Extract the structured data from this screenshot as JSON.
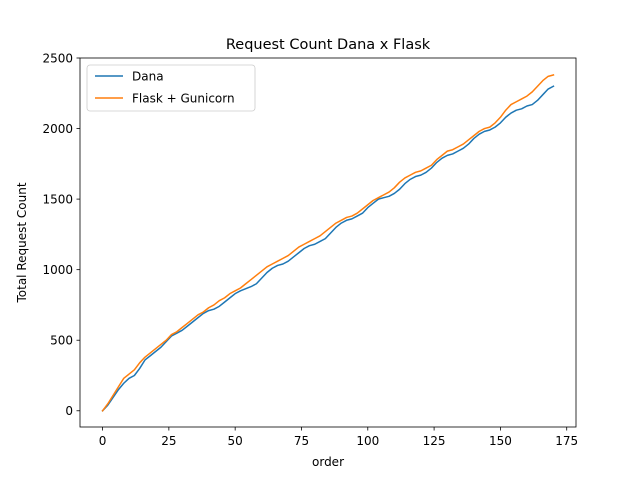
{
  "chart_data": {
    "type": "line",
    "title": "Request Count Dana x Flask",
    "xlabel": "order",
    "ylabel": "Total Request Count",
    "xlim": [
      -8.5,
      178.5
    ],
    "ylim": [
      -115,
      2500
    ],
    "xticks": [
      0,
      25,
      50,
      75,
      100,
      125,
      150,
      175
    ],
    "yticks": [
      0,
      500,
      1000,
      1500,
      2000,
      2500
    ],
    "grid": false,
    "legend_position": "upper-left",
    "series": [
      {
        "name": "Dana",
        "color": "#1f77b4",
        "points": [
          [
            0,
            0
          ],
          [
            2,
            40
          ],
          [
            4,
            95
          ],
          [
            6,
            150
          ],
          [
            8,
            195
          ],
          [
            10,
            230
          ],
          [
            12,
            250
          ],
          [
            14,
            300
          ],
          [
            16,
            360
          ],
          [
            18,
            390
          ],
          [
            20,
            420
          ],
          [
            22,
            450
          ],
          [
            24,
            490
          ],
          [
            26,
            530
          ],
          [
            28,
            550
          ],
          [
            30,
            570
          ],
          [
            32,
            600
          ],
          [
            34,
            630
          ],
          [
            36,
            660
          ],
          [
            38,
            690
          ],
          [
            40,
            710
          ],
          [
            42,
            720
          ],
          [
            44,
            740
          ],
          [
            46,
            770
          ],
          [
            48,
            800
          ],
          [
            50,
            830
          ],
          [
            52,
            850
          ],
          [
            54,
            865
          ],
          [
            56,
            880
          ],
          [
            58,
            900
          ],
          [
            60,
            940
          ],
          [
            62,
            980
          ],
          [
            64,
            1010
          ],
          [
            66,
            1030
          ],
          [
            68,
            1040
          ],
          [
            70,
            1060
          ],
          [
            72,
            1090
          ],
          [
            74,
            1120
          ],
          [
            76,
            1150
          ],
          [
            78,
            1170
          ],
          [
            80,
            1180
          ],
          [
            82,
            1200
          ],
          [
            84,
            1220
          ],
          [
            86,
            1260
          ],
          [
            88,
            1300
          ],
          [
            90,
            1330
          ],
          [
            92,
            1350
          ],
          [
            94,
            1360
          ],
          [
            96,
            1380
          ],
          [
            98,
            1400
          ],
          [
            100,
            1440
          ],
          [
            102,
            1470
          ],
          [
            104,
            1500
          ],
          [
            106,
            1510
          ],
          [
            108,
            1520
          ],
          [
            110,
            1540
          ],
          [
            112,
            1570
          ],
          [
            114,
            1610
          ],
          [
            116,
            1640
          ],
          [
            118,
            1660
          ],
          [
            120,
            1670
          ],
          [
            122,
            1690
          ],
          [
            124,
            1720
          ],
          [
            126,
            1760
          ],
          [
            128,
            1790
          ],
          [
            130,
            1810
          ],
          [
            132,
            1820
          ],
          [
            134,
            1840
          ],
          [
            136,
            1860
          ],
          [
            138,
            1890
          ],
          [
            140,
            1930
          ],
          [
            142,
            1960
          ],
          [
            144,
            1980
          ],
          [
            146,
            1990
          ],
          [
            148,
            2010
          ],
          [
            150,
            2040
          ],
          [
            152,
            2080
          ],
          [
            154,
            2110
          ],
          [
            156,
            2130
          ],
          [
            158,
            2140
          ],
          [
            160,
            2160
          ],
          [
            162,
            2170
          ],
          [
            164,
            2200
          ],
          [
            166,
            2240
          ],
          [
            168,
            2280
          ],
          [
            170,
            2300
          ]
        ]
      },
      {
        "name": "Flask + Gunicorn",
        "color": "#ff7f0e",
        "points": [
          [
            0,
            0
          ],
          [
            2,
            50
          ],
          [
            4,
            110
          ],
          [
            6,
            170
          ],
          [
            8,
            230
          ],
          [
            10,
            260
          ],
          [
            12,
            290
          ],
          [
            14,
            340
          ],
          [
            16,
            380
          ],
          [
            18,
            410
          ],
          [
            20,
            440
          ],
          [
            22,
            470
          ],
          [
            24,
            500
          ],
          [
            26,
            540
          ],
          [
            28,
            560
          ],
          [
            30,
            590
          ],
          [
            32,
            620
          ],
          [
            34,
            650
          ],
          [
            36,
            680
          ],
          [
            38,
            700
          ],
          [
            40,
            730
          ],
          [
            42,
            750
          ],
          [
            44,
            780
          ],
          [
            46,
            800
          ],
          [
            48,
            830
          ],
          [
            50,
            850
          ],
          [
            52,
            870
          ],
          [
            54,
            900
          ],
          [
            56,
            930
          ],
          [
            58,
            960
          ],
          [
            60,
            990
          ],
          [
            62,
            1020
          ],
          [
            64,
            1040
          ],
          [
            66,
            1060
          ],
          [
            68,
            1080
          ],
          [
            70,
            1100
          ],
          [
            72,
            1130
          ],
          [
            74,
            1160
          ],
          [
            76,
            1180
          ],
          [
            78,
            1200
          ],
          [
            80,
            1220
          ],
          [
            82,
            1240
          ],
          [
            84,
            1270
          ],
          [
            86,
            1300
          ],
          [
            88,
            1330
          ],
          [
            90,
            1350
          ],
          [
            92,
            1370
          ],
          [
            94,
            1380
          ],
          [
            96,
            1400
          ],
          [
            98,
            1430
          ],
          [
            100,
            1460
          ],
          [
            102,
            1490
          ],
          [
            104,
            1510
          ],
          [
            106,
            1530
          ],
          [
            108,
            1550
          ],
          [
            110,
            1580
          ],
          [
            112,
            1620
          ],
          [
            114,
            1650
          ],
          [
            116,
            1670
          ],
          [
            118,
            1690
          ],
          [
            120,
            1700
          ],
          [
            122,
            1720
          ],
          [
            124,
            1740
          ],
          [
            126,
            1780
          ],
          [
            128,
            1810
          ],
          [
            130,
            1840
          ],
          [
            132,
            1850
          ],
          [
            134,
            1870
          ],
          [
            136,
            1890
          ],
          [
            138,
            1920
          ],
          [
            140,
            1950
          ],
          [
            142,
            1980
          ],
          [
            144,
            2000
          ],
          [
            146,
            2010
          ],
          [
            148,
            2040
          ],
          [
            150,
            2080
          ],
          [
            152,
            2130
          ],
          [
            154,
            2170
          ],
          [
            156,
            2190
          ],
          [
            158,
            2210
          ],
          [
            160,
            2230
          ],
          [
            162,
            2260
          ],
          [
            164,
            2300
          ],
          [
            166,
            2340
          ],
          [
            168,
            2370
          ],
          [
            170,
            2380
          ]
        ]
      }
    ]
  }
}
